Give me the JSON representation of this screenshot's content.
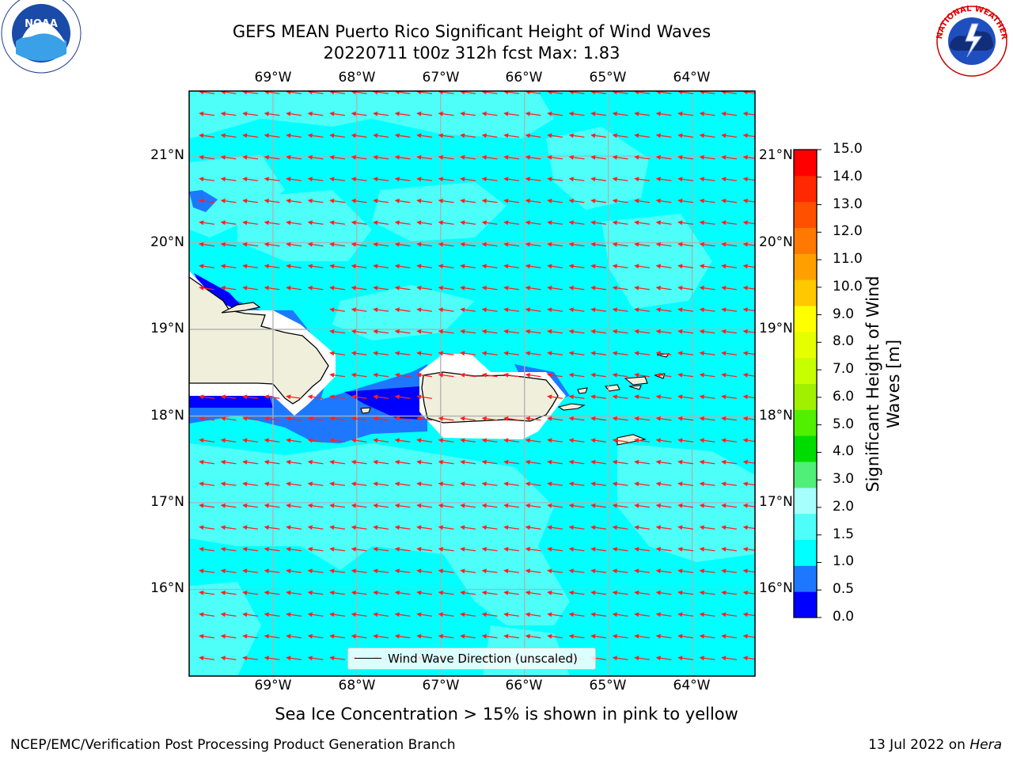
{
  "header": {
    "title_line1": "GEFS MEAN Puerto Rico Significant Height of Wind Waves",
    "title_line2": "20220711 t00z 312h fcst   Max: 1.83"
  },
  "logos": {
    "left": "noaa-logo",
    "right": "national-weather-service-logo",
    "left_ring_text": "NATIONAL OCEANIC AND ATMOSPHERIC ADMINISTRATION · U.S. DEPARTMENT OF COMMERCE",
    "left_center_text": "NOAA",
    "right_ring_text": "NATIONAL WEATHER SERVICE"
  },
  "map": {
    "lon_labels": [
      "69°W",
      "68°W",
      "67°W",
      "66°W",
      "65°W",
      "64°W"
    ],
    "lat_labels": [
      "21°N",
      "20°N",
      "19°N",
      "18°N",
      "17°N",
      "16°N"
    ],
    "lon_values": [
      -69,
      -68,
      -67,
      -66,
      -65,
      -64
    ],
    "lat_values": [
      21,
      20,
      19,
      18,
      17,
      16
    ],
    "extent": {
      "lon_min": -70.0,
      "lon_max": -63.25,
      "lat_min": 15.0,
      "lat_max": 21.75
    },
    "wave_direction": "westward (east-northeast to west-southwest)",
    "arrow_color": "#ff0000",
    "legend_label": "Wind Wave Direction (unscaled)"
  },
  "colorbar": {
    "label": "Significant Height of Wind Waves [m]",
    "tick_labels": [
      "15.0",
      "14.0",
      "13.0",
      "12.0",
      "11.0",
      "10.0",
      "9.0",
      "8.0",
      "7.0",
      "6.0",
      "5.0",
      "4.0",
      "3.0",
      "2.0",
      "1.5",
      "1.0",
      "0.5",
      "0.0"
    ],
    "levels": [
      0.0,
      0.5,
      1.0,
      1.5,
      2.0,
      3.0,
      4.0,
      5.0,
      6.0,
      7.0,
      8.0,
      9.0,
      10.0,
      11.0,
      12.0,
      13.0,
      14.0,
      15.0
    ],
    "colors": [
      "#0000ff",
      "#1e78ff",
      "#00ffff",
      "#4dfff8",
      "#a6fffc",
      "#50f078",
      "#00dc00",
      "#50f000",
      "#a0f000",
      "#c8ff00",
      "#e6ff00",
      "#ffff00",
      "#ffc800",
      "#ffa000",
      "#ff7800",
      "#ff5000",
      "#ff2800",
      "#ff0000"
    ]
  },
  "notes": {
    "sea_ice": "Sea Ice Concentration > 15% is shown in pink to yellow"
  },
  "footer": {
    "left": "NCEP/EMC/Verification Post Processing Product Generation Branch",
    "right_prefix": "13 Jul 2022 on ",
    "right_host": "Hera"
  },
  "chart_data": {
    "type": "heatmap",
    "title": "GEFS MEAN Puerto Rico Significant Height of Wind Waves",
    "subtitle": "20220711 t00z 312h fcst   Max: 1.83",
    "variable": "Significant Height of Wind Waves [m]",
    "max_value": 1.83,
    "xlim": [
      -70.0,
      -63.25
    ],
    "ylim": [
      15.0,
      21.75
    ],
    "dominant_range_m": [
      1.0,
      2.0
    ],
    "lee_side_range_m": [
      0.0,
      1.0
    ]
  }
}
